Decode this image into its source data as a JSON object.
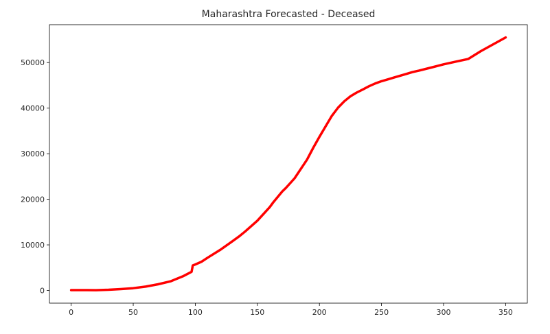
{
  "chart_data": {
    "type": "line",
    "title": "Maharashtra Forecasted - Deceased",
    "xlabel": "",
    "ylabel": "",
    "xlim": [
      -17.5,
      367.5
    ],
    "ylim": [
      -2780,
      58300
    ],
    "xticks": [
      0,
      50,
      100,
      150,
      200,
      250,
      300,
      350
    ],
    "yticks": [
      0,
      10000,
      20000,
      30000,
      40000,
      50000
    ],
    "grid": false,
    "legend": "none",
    "series": [
      {
        "color": "#ff0000",
        "x": [
          0,
          10,
          20,
          30,
          40,
          50,
          60,
          70,
          80,
          90,
          97,
          98,
          100,
          105,
          110,
          120,
          130,
          135,
          140,
          150,
          160,
          163,
          170,
          173,
          180,
          190,
          195,
          200,
          205,
          210,
          215,
          220,
          225,
          230,
          235,
          240,
          245,
          250,
          255,
          260,
          265,
          270,
          275,
          280,
          290,
          300,
          310,
          320,
          330,
          340,
          350
        ],
        "y": [
          80,
          80,
          70,
          150,
          300,
          500,
          850,
          1350,
          2000,
          3100,
          4100,
          5500,
          5700,
          6300,
          7200,
          8900,
          10800,
          11800,
          12900,
          15300,
          18300,
          19400,
          21700,
          22500,
          24600,
          28700,
          31300,
          33700,
          36000,
          38300,
          40100,
          41500,
          42600,
          43400,
          44100,
          44800,
          45400,
          45900,
          46300,
          46700,
          47100,
          47500,
          47900,
          48200,
          48900,
          49600,
          50200,
          50800,
          52500,
          54000,
          55500
        ]
      }
    ]
  }
}
